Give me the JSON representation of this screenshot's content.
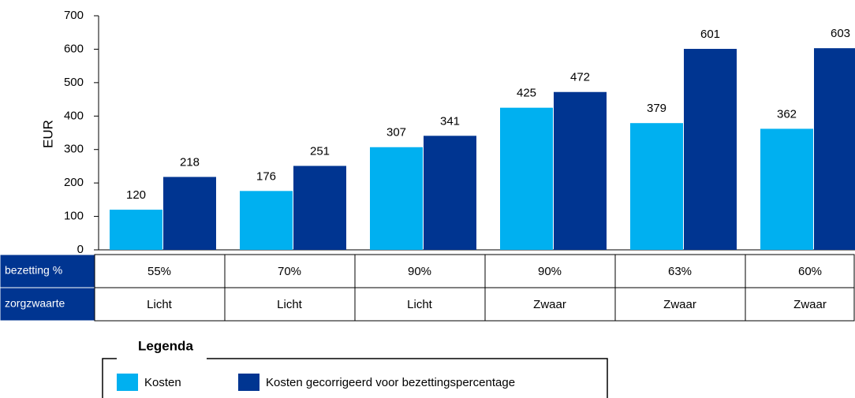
{
  "chart_data": {
    "type": "bar",
    "y_label": "EUR",
    "series": [
      {
        "name": "Kosten",
        "color": "#00b0f0",
        "values": [
          120,
          176,
          307,
          425,
          379,
          362
        ]
      },
      {
        "name": "Kosten gecorrigeerd voor bezettingspercentage",
        "color": "#003591",
        "values": [
          218,
          251,
          341,
          472,
          601,
          603
        ]
      }
    ],
    "ylim": [
      0,
      700
    ],
    "yticks": [
      0,
      100,
      200,
      300,
      400,
      500,
      600,
      700
    ],
    "table": {
      "rows": [
        {
          "label": "bezetting %",
          "cells": [
            "55%",
            "70%",
            "90%",
            "90%",
            "63%",
            "60%"
          ]
        },
        {
          "label": "zorgzwaarte",
          "cells": [
            "Licht",
            "Licht",
            "Licht",
            "Zwaar",
            "Zwaar",
            "Zwaar"
          ]
        }
      ]
    },
    "legend_title": "Legenda"
  }
}
